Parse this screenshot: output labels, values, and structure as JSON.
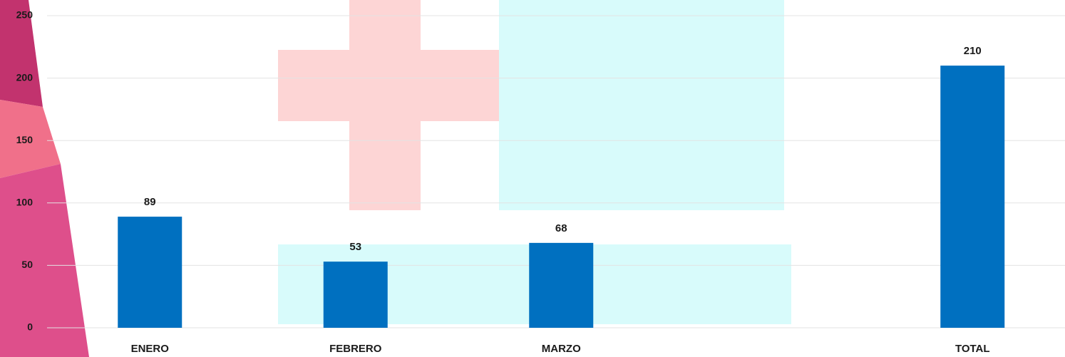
{
  "chart_data": {
    "type": "bar",
    "categories": [
      "ENERO",
      "FEBRERO",
      "MARZO",
      null,
      "TOTAL"
    ],
    "values": [
      89,
      53,
      68,
      null,
      210
    ],
    "color": "#0070c0",
    "ylim": [
      0,
      250
    ],
    "yticks": [
      0,
      50,
      100,
      150,
      200,
      250
    ],
    "grid": true
  }
}
